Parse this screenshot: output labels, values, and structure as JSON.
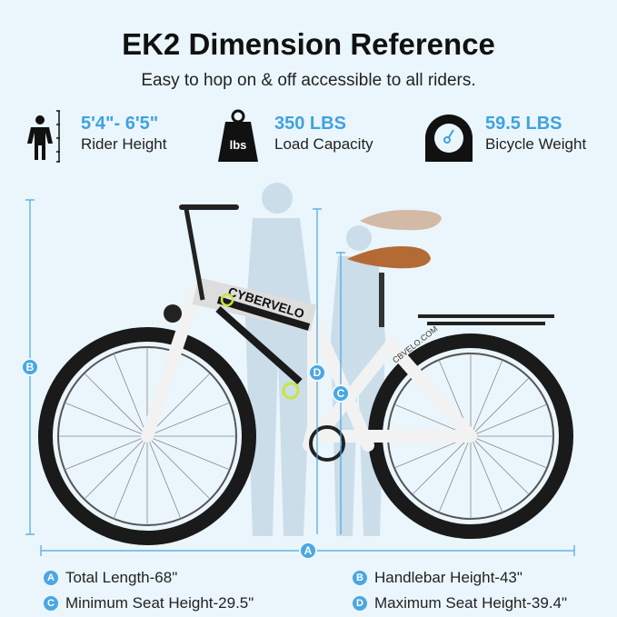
{
  "title": "EK2 Dimension Reference",
  "subtitle": "Easy to hop on & off accessible to all riders.",
  "specs": [
    {
      "icon": "person-height-icon",
      "value": "5'4\"- 6'5\"",
      "label": "Rider Height"
    },
    {
      "icon": "weight-lbs-icon",
      "value": "350 LBS",
      "label": "Load Capacity",
      "icon_text": "lbs"
    },
    {
      "icon": "scale-gauge-icon",
      "value": "59.5 LBS",
      "label": "Bicycle Weight"
    }
  ],
  "bike": {
    "brand": "CYBERVELO",
    "site": "CBVELO.COM",
    "frame_color": "#f2f2f2",
    "accent_color": "#c8e63c"
  },
  "markers": {
    "a": "A",
    "b": "B",
    "c": "C",
    "d": "D"
  },
  "legend": [
    {
      "key": "A",
      "text": "Total Length-68\""
    },
    {
      "key": "B",
      "text": "Handlebar Height-43\""
    },
    {
      "key": "C",
      "text": "Minimum Seat Height-29.5\""
    },
    {
      "key": "D",
      "text": "Maximum Seat Height-39.4\""
    }
  ],
  "colors": {
    "accent": "#4aa7e0",
    "background": "#eaf6fc"
  }
}
